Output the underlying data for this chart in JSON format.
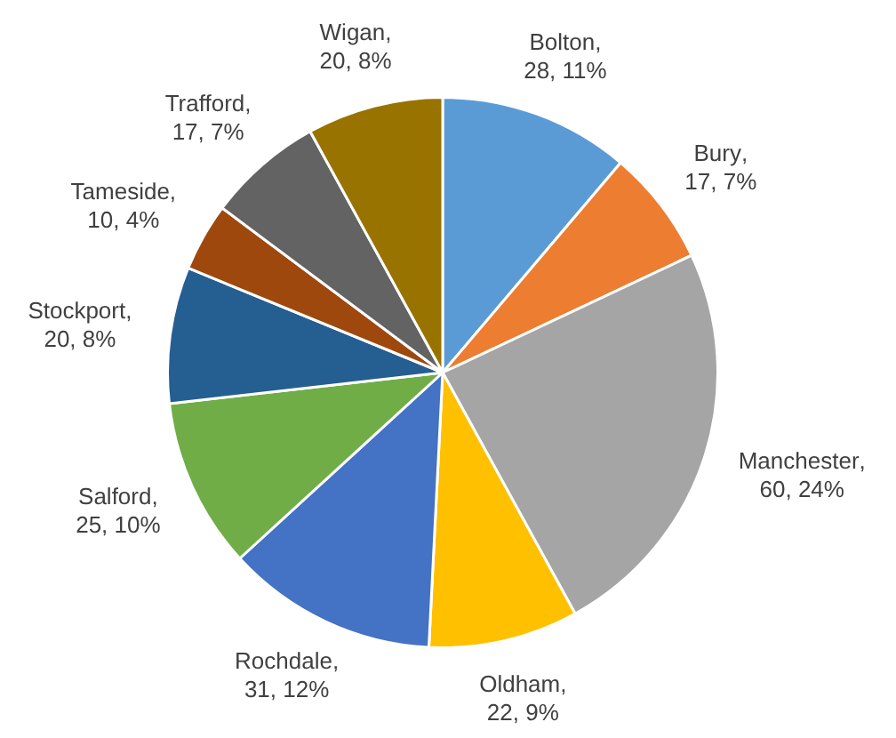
{
  "chart_data": {
    "type": "pie",
    "categories": [
      "Bolton",
      "Bury",
      "Manchester",
      "Oldham",
      "Rochdale",
      "Salford",
      "Stockport",
      "Tameside",
      "Trafford",
      "Wigan"
    ],
    "values": [
      28,
      17,
      60,
      22,
      31,
      25,
      20,
      10,
      17,
      20
    ],
    "value_labels": [
      ", 28, 11%",
      ", 17, 7%",
      ", 60, 24%",
      ", 22, 9%",
      ", 31, 12%",
      ", 25, 10%",
      ", 20, 8%",
      ", 10, 4%",
      ", 17, 7%",
      ", 20, 8%"
    ],
    "colors": [
      "#5b9bd5",
      "#ed7d31",
      "#a5a5a5",
      "#ffc000",
      "#4472c4",
      "#70ad47",
      "#255e91",
      "#9e480e",
      "#636363",
      "#997300"
    ],
    "legend": false
  }
}
